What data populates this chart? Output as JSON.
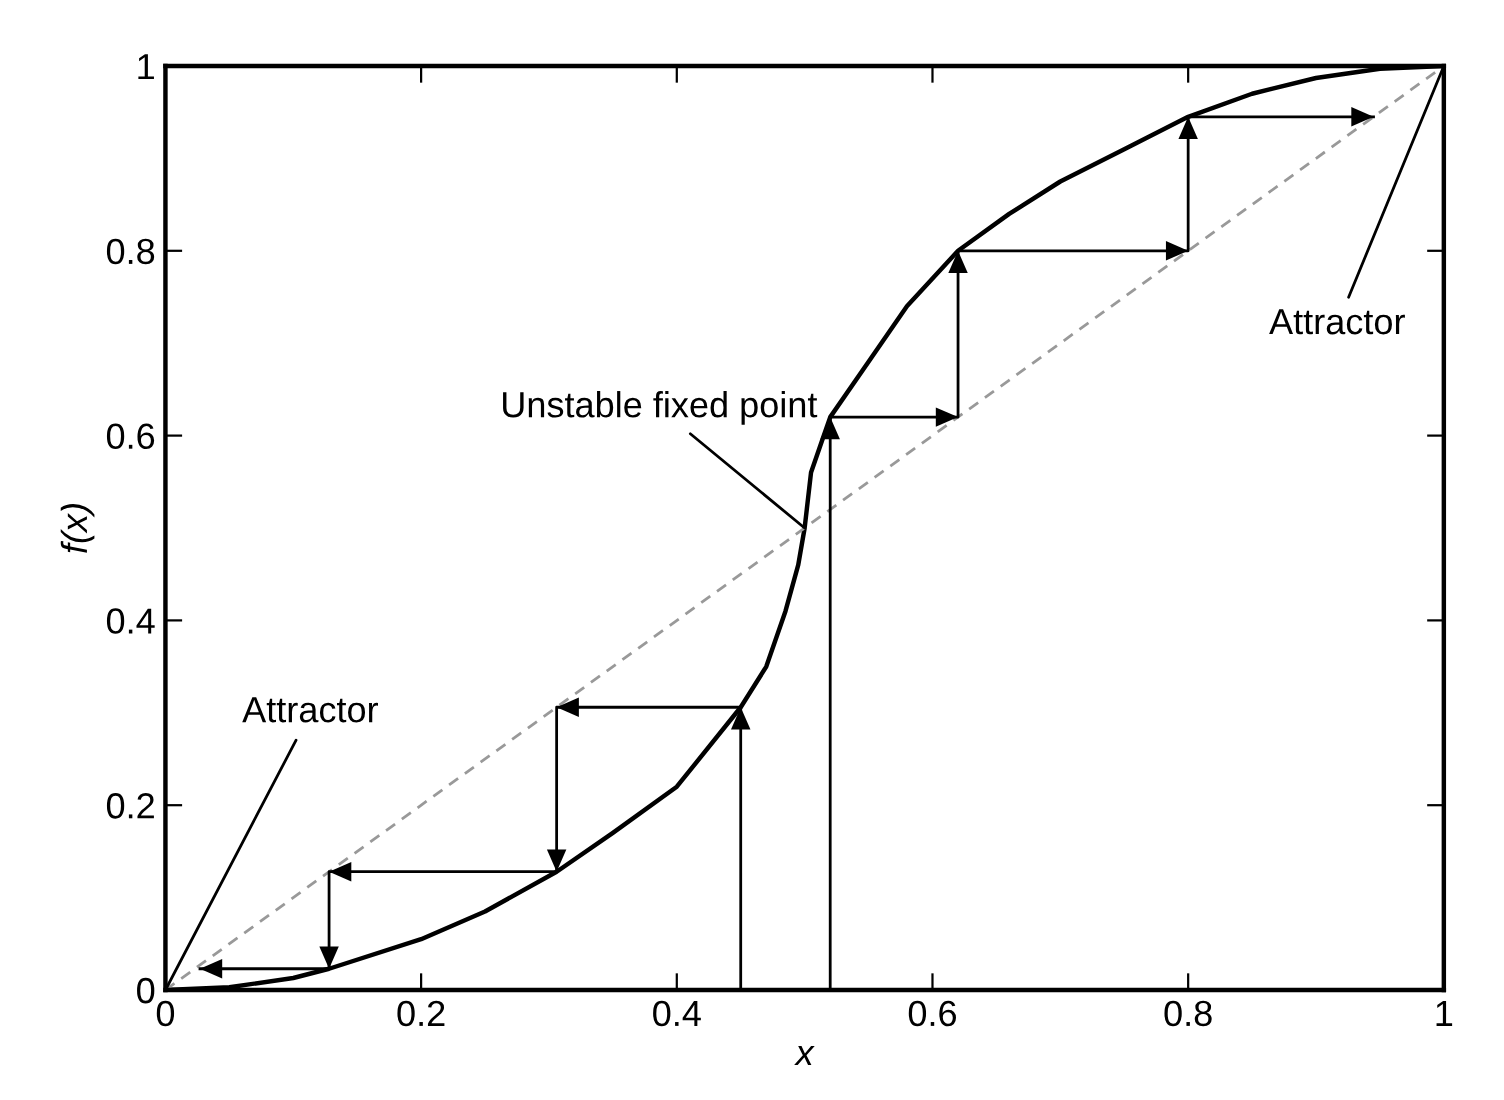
{
  "chart_data": {
    "type": "line",
    "xlabel": "x",
    "ylabel": "f(x)",
    "xlim": [
      0,
      1
    ],
    "ylim": [
      0,
      1
    ],
    "xticks": [
      0,
      0.2,
      0.4,
      0.6,
      0.8,
      1
    ],
    "yticks": [
      0,
      0.2,
      0.4,
      0.6,
      0.8,
      1
    ],
    "grid": false,
    "legend": false,
    "marker": "none",
    "series": [
      {
        "color": "#000000",
        "line_style": "solid",
        "x": [
          0,
          0.05,
          0.1,
          0.128,
          0.2,
          0.25,
          0.306,
          0.35,
          0.4,
          0.45,
          0.47,
          0.485,
          0.495,
          0.5,
          0.505,
          0.515,
          0.52,
          0.55,
          0.58,
          0.62,
          0.66,
          0.7,
          0.75,
          0.8,
          0.85,
          0.9,
          0.95,
          1
        ],
        "values": [
          0,
          0.003,
          0.013,
          0.023,
          0.055,
          0.085,
          0.128,
          0.17,
          0.22,
          0.306,
          0.35,
          0.41,
          0.46,
          0.5,
          0.56,
          0.6,
          0.62,
          0.68,
          0.74,
          0.8,
          0.84,
          0.875,
          0.91,
          0.945,
          0.97,
          0.987,
          0.997,
          1
        ]
      },
      {
        "color": "#999999",
        "line_style": "dashed",
        "x": [
          0,
          1
        ],
        "values": [
          0,
          1
        ]
      },
      {
        "type": "step",
        "color": "#000000",
        "line_style": "solid",
        "x": [
          0.45,
          0.45,
          0.306,
          0.306,
          0.128,
          0.128,
          0.027
        ],
        "values": [
          0,
          0.306,
          0.306,
          0.128,
          0.128,
          0.023,
          0.023
        ]
      },
      {
        "type": "step",
        "color": "#000000",
        "line_style": "solid",
        "x": [
          0.52,
          0.52,
          0.62,
          0.62,
          0.8,
          0.8,
          0.945
        ],
        "values": [
          0,
          0.62,
          0.62,
          0.8,
          0.8,
          0.945,
          0.945
        ]
      }
    ],
    "annotations": [
      {
        "text": "Attractor",
        "x": 0,
        "y": 0
      },
      {
        "text": "Unstable fixed point",
        "x": 0.5,
        "y": 0.5
      },
      {
        "text": "Attractor",
        "x": 1,
        "y": 1
      }
    ]
  }
}
